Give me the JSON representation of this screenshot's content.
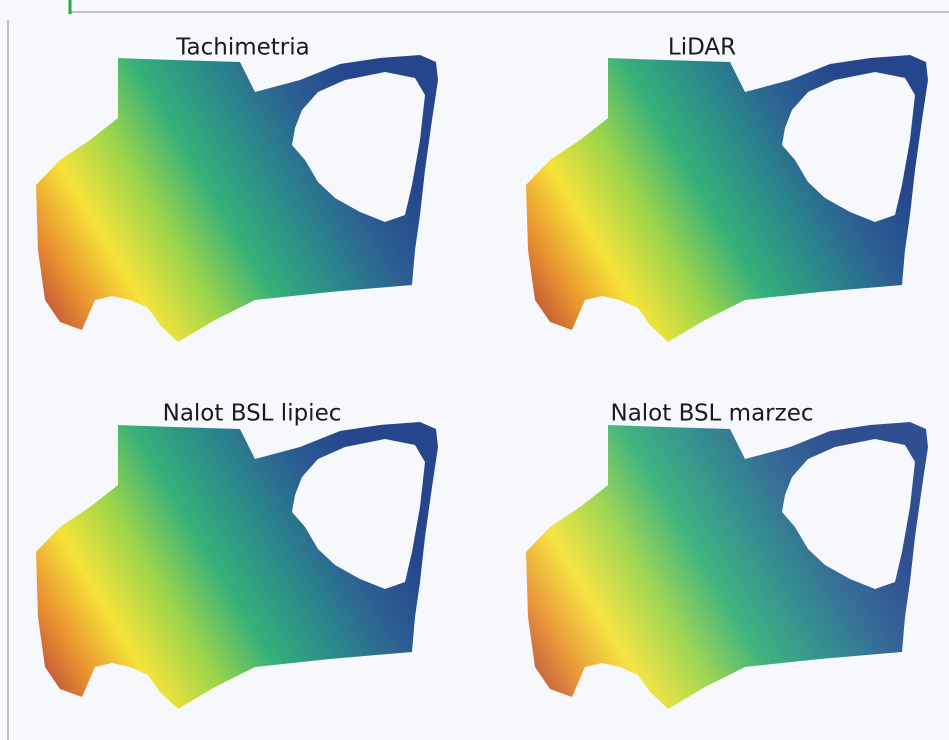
{
  "panels": [
    {
      "title": "Tachimetria"
    },
    {
      "title": "LiDAR"
    },
    {
      "title": "Nalot BSL lipiec"
    },
    {
      "title": "Nalot BSL marzec"
    }
  ]
}
